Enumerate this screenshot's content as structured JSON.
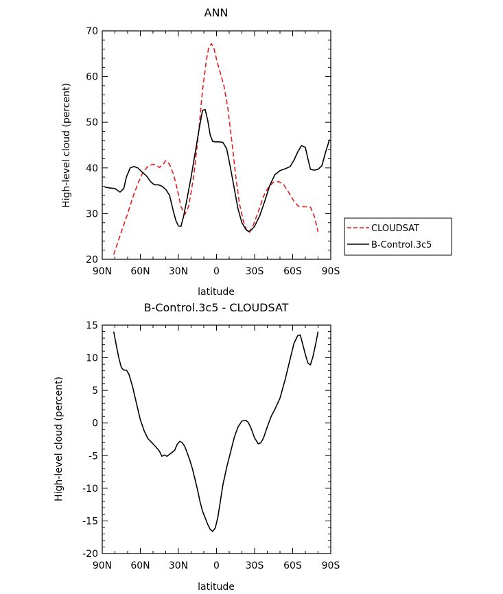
{
  "chart_data": [
    {
      "type": "line",
      "title": "ANN",
      "xlabel": "latitude",
      "ylabel": "High-level cloud (percent)",
      "xlim": [
        90,
        -90
      ],
      "ylim": [
        20,
        70
      ],
      "xticks": [
        90,
        60,
        30,
        0,
        -30,
        -60,
        -90
      ],
      "xtick_labels": [
        "90N",
        "60N",
        "30N",
        "0",
        "30S",
        "60S",
        "90S"
      ],
      "yticks": [
        20,
        30,
        40,
        50,
        60,
        70
      ],
      "ytick_labels": [
        "20",
        "30",
        "40",
        "50",
        "60",
        "70"
      ],
      "legend_position": "right",
      "series": [
        {
          "name": "CLOUDSAT",
          "color": "#e41a1c",
          "dash": "dashed",
          "x": [
            81,
            75,
            70,
            66,
            62,
            58,
            54,
            50,
            48,
            45,
            42,
            40,
            37,
            34,
            31,
            28,
            25,
            22,
            18,
            14,
            11,
            8,
            6,
            4,
            2,
            0,
            -3,
            -6,
            -9,
            -12,
            -15,
            -18,
            -21,
            -24,
            -26,
            -29,
            -33,
            -37,
            -41,
            -45,
            -49,
            -53,
            -57,
            -61,
            -65,
            -70,
            -74,
            -77,
            -80
          ],
          "y": [
            21,
            26,
            30,
            33.5,
            36.5,
            39,
            40.4,
            40.8,
            40.6,
            40.1,
            40.8,
            41.6,
            40.8,
            38.7,
            35.5,
            31.5,
            29.8,
            31.5,
            38,
            48,
            57,
            63.5,
            66.5,
            67.2,
            66.2,
            63.8,
            60.8,
            57.8,
            53,
            46,
            38.5,
            32.3,
            28.5,
            26.1,
            25.9,
            27.5,
            30.5,
            33.8,
            35.8,
            36.9,
            37,
            36.3,
            34.6,
            32.7,
            31.5,
            31.5,
            31.4,
            29.5,
            26
          ]
        },
        {
          "name": "B-Control.3c5",
          "color": "#000000",
          "dash": "solid",
          "x": [
            88,
            84,
            80,
            76,
            73,
            71,
            68,
            65,
            62,
            59,
            55,
            52,
            49,
            46,
            43,
            40,
            37,
            34,
            32,
            30,
            28,
            26,
            23,
            20,
            17,
            14,
            11,
            9,
            7,
            5,
            3,
            1,
            -2,
            -5,
            -8,
            -11,
            -14,
            -17,
            -20,
            -23,
            -25,
            -27,
            -30,
            -34,
            -38,
            -42,
            -46,
            -50,
            -54,
            -58,
            -61,
            -64,
            -67,
            -70,
            -72,
            -74,
            -77,
            -80,
            -83,
            -86,
            -89
          ],
          "y": [
            35.8,
            35.6,
            35.5,
            34.7,
            35.5,
            38,
            40,
            40.3,
            40,
            39.2,
            38.2,
            37,
            36.3,
            36.3,
            36,
            35.3,
            34,
            30.5,
            28.5,
            27.3,
            27.2,
            29.3,
            33.5,
            38,
            43,
            48,
            52.6,
            52.8,
            50.5,
            47.2,
            45.8,
            45.7,
            45.7,
            45.6,
            44.2,
            40,
            35.5,
            31,
            28,
            26.6,
            26.1,
            26.3,
            27.2,
            29.5,
            32.7,
            36.2,
            38.5,
            39.4,
            39.8,
            40.3,
            41.7,
            43.5,
            44.9,
            44.5,
            42,
            39.7,
            39.5,
            39.7,
            40.5,
            43.5,
            46.2
          ]
        }
      ]
    },
    {
      "type": "line",
      "title": "B-Control.3c5 - CLOUDSAT",
      "xlabel": "latitude",
      "ylabel": "High-level cloud (percent)",
      "xlim": [
        90,
        -90
      ],
      "ylim": [
        -20,
        15
      ],
      "xticks": [
        90,
        60,
        30,
        0,
        -30,
        -60,
        -90
      ],
      "xtick_labels": [
        "90N",
        "60N",
        "30N",
        "0",
        "30S",
        "60S",
        "90S"
      ],
      "yticks": [
        -20,
        -15,
        -10,
        -5,
        0,
        5,
        10,
        15
      ],
      "ytick_labels": [
        "-20",
        "-15",
        "-10",
        "-5",
        "0",
        "5",
        "10",
        "15"
      ],
      "series": [
        {
          "color": "#000000",
          "dash": "solid",
          "x": [
            81,
            79,
            77,
            75,
            73,
            71,
            69,
            66,
            63,
            60,
            57,
            54,
            51,
            48,
            45,
            43,
            41,
            39,
            37,
            35,
            33,
            31,
            29,
            27,
            25,
            23,
            21,
            19,
            17,
            15,
            13,
            11,
            9,
            7,
            5,
            3,
            1,
            -1,
            -3,
            -5,
            -8,
            -11,
            -14,
            -17,
            -20,
            -23,
            -25,
            -27,
            -30,
            -33,
            -35,
            -37,
            -40,
            -43,
            -46,
            -50,
            -54,
            -58,
            -61,
            -64,
            -66,
            -68,
            -70,
            -72,
            -74,
            -76,
            -78,
            -80
          ],
          "y": [
            14,
            12,
            10,
            8.5,
            8.1,
            8.1,
            7.5,
            5.5,
            3,
            0.5,
            -1.2,
            -2.4,
            -3,
            -3.6,
            -4.3,
            -5.1,
            -4.9,
            -5.1,
            -4.8,
            -4.5,
            -4.2,
            -3.3,
            -2.8,
            -3,
            -3.6,
            -4.6,
            -5.7,
            -7,
            -8.6,
            -10.2,
            -12,
            -13.5,
            -14.5,
            -15.5,
            -16.3,
            -16.6,
            -16.1,
            -14.5,
            -12,
            -9.5,
            -6.8,
            -4.5,
            -2.2,
            -0.6,
            0.3,
            0.4,
            0.1,
            -0.7,
            -2.3,
            -3.2,
            -3,
            -2.3,
            -0.6,
            1,
            2.1,
            3.8,
            6.6,
            9.8,
            12.2,
            13.4,
            13.5,
            12,
            10.5,
            9.2,
            8.9,
            10.2,
            12,
            14
          ]
        }
      ]
    }
  ]
}
